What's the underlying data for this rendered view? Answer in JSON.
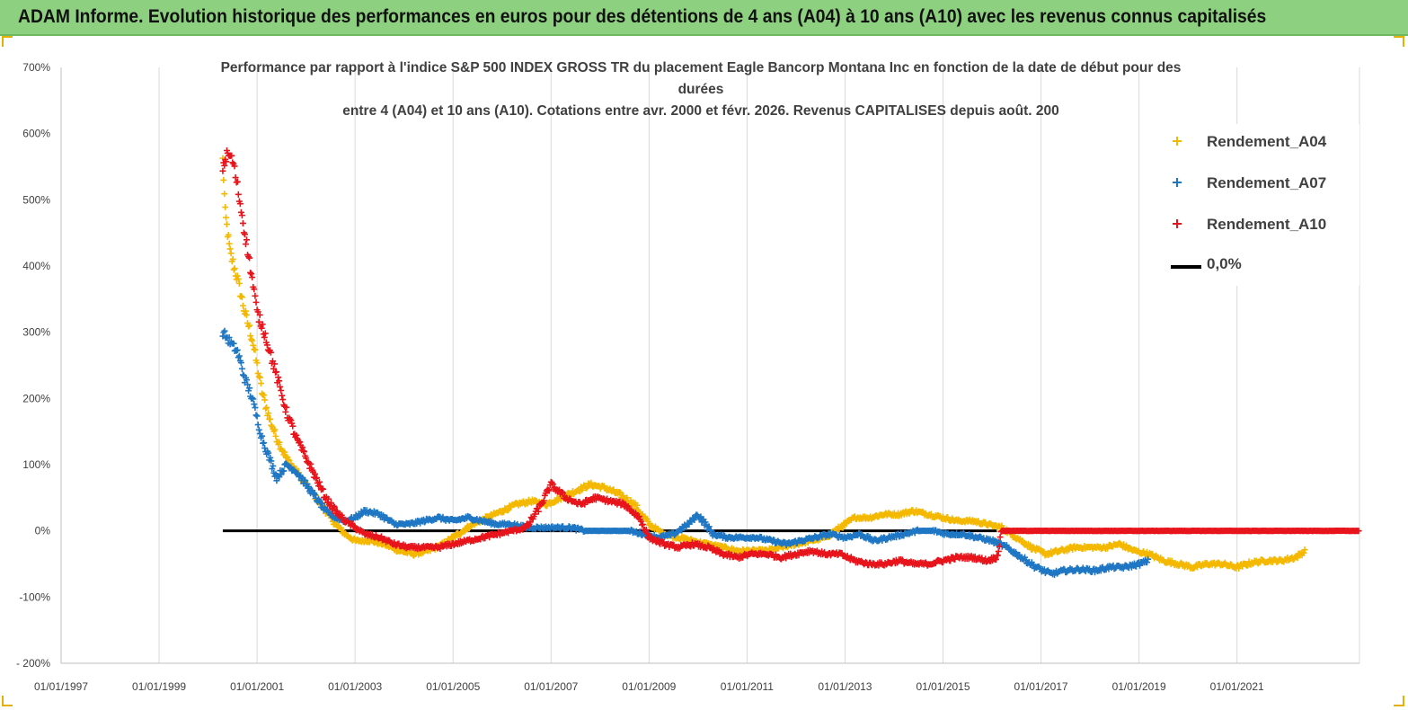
{
  "banner": {
    "title": "ADAM Informe. Evolution historique des performances en euros pour des détentions de 4 ans (A04) à 10 ans (A10) avec les revenus connus capitalisés"
  },
  "chart_data": {
    "type": "scatter",
    "title_lines": [
      "Performance par rapport à l'indice S&P 500 INDEX GROSS TR  du placement Eagle Bancorp Montana Inc en fonction de la date de début pour des",
      "durées",
      "entre 4 (A04) et 10 ans (A10).  Cotations entre avr. 2000 et févr. 2026. Revenus CAPITALISES depuis août. 200"
    ],
    "ylim": [
      -200,
      700
    ],
    "yticks": [
      -200,
      -100,
      0,
      100,
      200,
      300,
      400,
      500,
      600,
      700
    ],
    "ytick_labels": [
      "- 200%",
      "-100%",
      "0%",
      "100%",
      "200%",
      "300%",
      "400%",
      "500%",
      "600%",
      "700%"
    ],
    "xlim": [
      1997.0,
      2023.5
    ],
    "xticks": [
      1997,
      1999,
      2001,
      2003,
      2005,
      2007,
      2009,
      2011,
      2013,
      2015,
      2017,
      2019,
      2021
    ],
    "xtick_labels": [
      "01/01/1997",
      "01/01/1999",
      "01/01/2001",
      "01/01/2003",
      "01/01/2005",
      "01/01/2007",
      "01/01/2009",
      "01/01/2011",
      "01/01/2013",
      "01/01/2015",
      "01/01/2017",
      "01/01/2019",
      "01/01/2021"
    ],
    "grid": "vertical",
    "legend_position": "top-right",
    "series": [
      {
        "name": "Rendement_A04",
        "color": "#f5b800",
        "marker": "plus",
        "points": [
          [
            2000.3,
            560
          ],
          [
            2000.35,
            480
          ],
          [
            2000.45,
            420
          ],
          [
            2000.6,
            380
          ],
          [
            2000.75,
            330
          ],
          [
            2000.9,
            290
          ],
          [
            2001.0,
            250
          ],
          [
            2001.1,
            210
          ],
          [
            2001.25,
            170
          ],
          [
            2001.4,
            140
          ],
          [
            2001.6,
            110
          ],
          [
            2001.8,
            90
          ],
          [
            2002.0,
            70
          ],
          [
            2002.2,
            50
          ],
          [
            2002.4,
            30
          ],
          [
            2002.6,
            10
          ],
          [
            2002.8,
            -5
          ],
          [
            2003.0,
            -15
          ],
          [
            2003.3,
            -15
          ],
          [
            2003.6,
            -20
          ],
          [
            2003.9,
            -30
          ],
          [
            2004.2,
            -35
          ],
          [
            2004.5,
            -30
          ],
          [
            2004.8,
            -20
          ],
          [
            2005.1,
            -5
          ],
          [
            2005.4,
            10
          ],
          [
            2005.7,
            20
          ],
          [
            2006.0,
            30
          ],
          [
            2006.3,
            40
          ],
          [
            2006.6,
            45
          ],
          [
            2006.9,
            40
          ],
          [
            2007.2,
            50
          ],
          [
            2007.5,
            60
          ],
          [
            2007.8,
            70
          ],
          [
            2008.1,
            65
          ],
          [
            2008.4,
            55
          ],
          [
            2008.7,
            40
          ],
          [
            2009.0,
            10
          ],
          [
            2009.3,
            -5
          ],
          [
            2009.6,
            -10
          ],
          [
            2009.9,
            -15
          ],
          [
            2010.2,
            -20
          ],
          [
            2010.5,
            -25
          ],
          [
            2010.8,
            -30
          ],
          [
            2011.1,
            -30
          ],
          [
            2011.4,
            -30
          ],
          [
            2011.7,
            -25
          ],
          [
            2012.0,
            -20
          ],
          [
            2012.3,
            -15
          ],
          [
            2012.6,
            -10
          ],
          [
            2012.9,
            5
          ],
          [
            2013.2,
            20
          ],
          [
            2013.5,
            20
          ],
          [
            2013.8,
            25
          ],
          [
            2014.1,
            25
          ],
          [
            2014.4,
            30
          ],
          [
            2014.7,
            25
          ],
          [
            2015.0,
            20
          ],
          [
            2015.3,
            15
          ],
          [
            2015.6,
            15
          ],
          [
            2015.9,
            10
          ],
          [
            2016.2,
            5
          ],
          [
            2016.5,
            -10
          ],
          [
            2016.8,
            -25
          ],
          [
            2017.1,
            -35
          ],
          [
            2017.4,
            -30
          ],
          [
            2017.7,
            -25
          ],
          [
            2018.0,
            -25
          ],
          [
            2018.3,
            -25
          ],
          [
            2018.6,
            -20
          ],
          [
            2018.9,
            -30
          ],
          [
            2019.2,
            -35
          ],
          [
            2019.5,
            -45
          ],
          [
            2019.8,
            -50
          ],
          [
            2020.1,
            -55
          ],
          [
            2020.4,
            -50
          ],
          [
            2020.7,
            -50
          ],
          [
            2021.0,
            -55
          ],
          [
            2021.3,
            -48
          ],
          [
            2021.6,
            -45
          ],
          [
            2021.9,
            -45
          ],
          [
            2022.2,
            -40
          ],
          [
            2022.4,
            -30
          ]
        ]
      },
      {
        "name": "Rendement_A07",
        "color": "#1f77c4",
        "marker": "plus",
        "points": [
          [
            2000.3,
            300
          ],
          [
            2000.45,
            285
          ],
          [
            2000.6,
            270
          ],
          [
            2000.75,
            230
          ],
          [
            2000.9,
            200
          ],
          [
            2001.0,
            170
          ],
          [
            2001.1,
            140
          ],
          [
            2001.25,
            110
          ],
          [
            2001.4,
            80
          ],
          [
            2001.6,
            100
          ],
          [
            2001.8,
            90
          ],
          [
            2002.0,
            70
          ],
          [
            2002.2,
            50
          ],
          [
            2002.4,
            30
          ],
          [
            2002.6,
            20
          ],
          [
            2002.8,
            15
          ],
          [
            2003.0,
            20
          ],
          [
            2003.2,
            30
          ],
          [
            2003.5,
            25
          ],
          [
            2003.8,
            10
          ],
          [
            2004.1,
            10
          ],
          [
            2004.4,
            15
          ],
          [
            2004.7,
            20
          ],
          [
            2005.0,
            15
          ],
          [
            2005.3,
            20
          ],
          [
            2005.6,
            15
          ],
          [
            2005.9,
            10
          ],
          [
            2006.2,
            10
          ],
          [
            2006.5,
            5
          ],
          [
            2006.8,
            5
          ],
          [
            2007.1,
            5
          ],
          [
            2007.4,
            5
          ],
          [
            2007.7,
            0
          ],
          [
            2008.0,
            0
          ],
          [
            2008.3,
            0
          ],
          [
            2008.6,
            0
          ],
          [
            2008.9,
            -5
          ],
          [
            2009.2,
            -10
          ],
          [
            2009.5,
            -5
          ],
          [
            2009.8,
            10
          ],
          [
            2010.0,
            25
          ],
          [
            2010.3,
            -5
          ],
          [
            2010.6,
            -10
          ],
          [
            2010.9,
            -10
          ],
          [
            2011.2,
            -10
          ],
          [
            2011.5,
            -15
          ],
          [
            2011.8,
            -20
          ],
          [
            2012.1,
            -15
          ],
          [
            2012.4,
            -10
          ],
          [
            2012.7,
            -5
          ],
          [
            2013.0,
            -10
          ],
          [
            2013.3,
            -5
          ],
          [
            2013.6,
            -15
          ],
          [
            2013.9,
            -10
          ],
          [
            2014.2,
            -5
          ],
          [
            2014.5,
            0
          ],
          [
            2014.8,
            0
          ],
          [
            2015.1,
            -5
          ],
          [
            2015.4,
            -5
          ],
          [
            2015.7,
            -10
          ],
          [
            2016.0,
            -15
          ],
          [
            2016.3,
            -25
          ],
          [
            2016.6,
            -40
          ],
          [
            2016.9,
            -55
          ],
          [
            2017.2,
            -65
          ],
          [
            2017.5,
            -60
          ],
          [
            2017.8,
            -58
          ],
          [
            2018.1,
            -60
          ],
          [
            2018.4,
            -55
          ],
          [
            2018.7,
            -55
          ],
          [
            2019.0,
            -50
          ],
          [
            2019.2,
            -45
          ]
        ]
      },
      {
        "name": "Rendement_A10",
        "color": "#e8141c",
        "marker": "plus",
        "points": [
          [
            2000.3,
            550
          ],
          [
            2000.4,
            570
          ],
          [
            2000.5,
            560
          ],
          [
            2000.6,
            520
          ],
          [
            2000.75,
            450
          ],
          [
            2000.9,
            380
          ],
          [
            2001.0,
            330
          ],
          [
            2001.15,
            300
          ],
          [
            2001.3,
            260
          ],
          [
            2001.45,
            220
          ],
          [
            2001.6,
            180
          ],
          [
            2001.8,
            140
          ],
          [
            2002.0,
            110
          ],
          [
            2002.2,
            80
          ],
          [
            2002.4,
            50
          ],
          [
            2002.6,
            30
          ],
          [
            2002.8,
            15
          ],
          [
            2003.0,
            5
          ],
          [
            2003.2,
            -5
          ],
          [
            2003.5,
            -10
          ],
          [
            2003.8,
            -20
          ],
          [
            2004.1,
            -25
          ],
          [
            2004.4,
            -25
          ],
          [
            2004.7,
            -25
          ],
          [
            2005.0,
            -20
          ],
          [
            2005.3,
            -15
          ],
          [
            2005.6,
            -10
          ],
          [
            2005.9,
            -5
          ],
          [
            2006.2,
            0
          ],
          [
            2006.5,
            5
          ],
          [
            2006.8,
            40
          ],
          [
            2007.0,
            70
          ],
          [
            2007.3,
            50
          ],
          [
            2007.6,
            40
          ],
          [
            2007.9,
            50
          ],
          [
            2008.2,
            45
          ],
          [
            2008.5,
            40
          ],
          [
            2008.8,
            20
          ],
          [
            2009.0,
            -10
          ],
          [
            2009.3,
            -20
          ],
          [
            2009.6,
            -25
          ],
          [
            2009.9,
            -20
          ],
          [
            2010.2,
            -25
          ],
          [
            2010.5,
            -35
          ],
          [
            2010.8,
            -40
          ],
          [
            2011.1,
            -35
          ],
          [
            2011.4,
            -35
          ],
          [
            2011.7,
            -40
          ],
          [
            2012.0,
            -35
          ],
          [
            2012.3,
            -30
          ],
          [
            2012.6,
            -35
          ],
          [
            2012.9,
            -35
          ],
          [
            2013.2,
            -45
          ],
          [
            2013.5,
            -50
          ],
          [
            2013.8,
            -50
          ],
          [
            2014.1,
            -45
          ],
          [
            2014.4,
            -50
          ],
          [
            2014.7,
            -50
          ],
          [
            2015.0,
            -45
          ],
          [
            2015.3,
            -40
          ],
          [
            2015.6,
            -40
          ],
          [
            2015.9,
            -45
          ],
          [
            2016.1,
            -40
          ],
          [
            2016.2,
            0
          ],
          [
            2017.0,
            0
          ],
          [
            2018.0,
            0
          ],
          [
            2019.0,
            0
          ],
          [
            2020.0,
            0
          ],
          [
            2021.0,
            0
          ],
          [
            2022.0,
            0
          ],
          [
            2023.0,
            0
          ],
          [
            2023.5,
            0
          ]
        ]
      },
      {
        "name": "0,0%",
        "color": "#000000",
        "marker": "line",
        "points": [
          [
            2000.3,
            0
          ],
          [
            2016.1,
            0
          ]
        ]
      }
    ]
  }
}
